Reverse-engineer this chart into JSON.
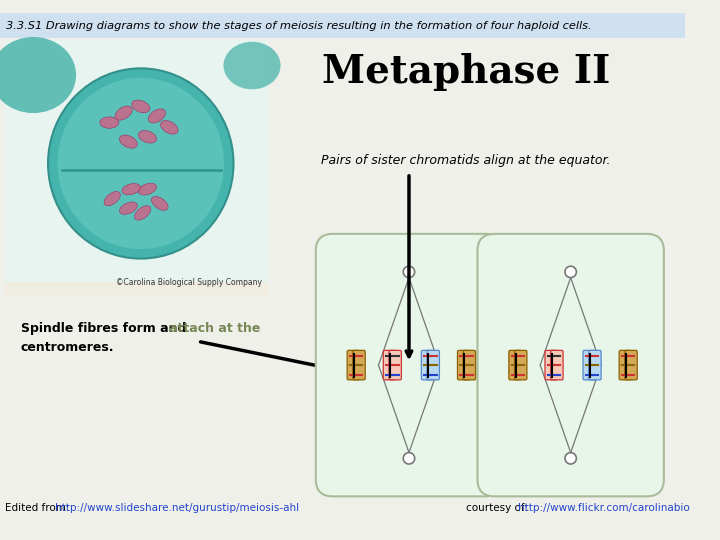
{
  "title_bar": "3.3.S1 Drawing diagrams to show the stages of meiosis resulting in the formation of four haploid cells.",
  "title_bar_bg": "#cfe0f0",
  "main_title": "Metaphase II",
  "annotation1": "Pairs of sister chromatids align at the equator.",
  "annotation2_part1": "Spindle fibres form and ",
  "annotation2_link": "attach",
  "annotation2_part2": " at the\ncentromeres.",
  "footer_left_plain": "Edited from: ",
  "footer_left_link": "http://www.slideshare.net/gurustip/meiosis-ahl",
  "footer_right_plain": "courtesy of: ",
  "footer_right_link": "http://www.flickr.com/carolinabio",
  "cell_bg": "#e8f5e9",
  "cell_border": "#aabb99",
  "spindle_color": "#777777",
  "bg_color": "#f0f0eb",
  "photo_bg": "#e0f0f0",
  "photo_teal": "#55b8b0",
  "photo_light": "#c8e8e4"
}
